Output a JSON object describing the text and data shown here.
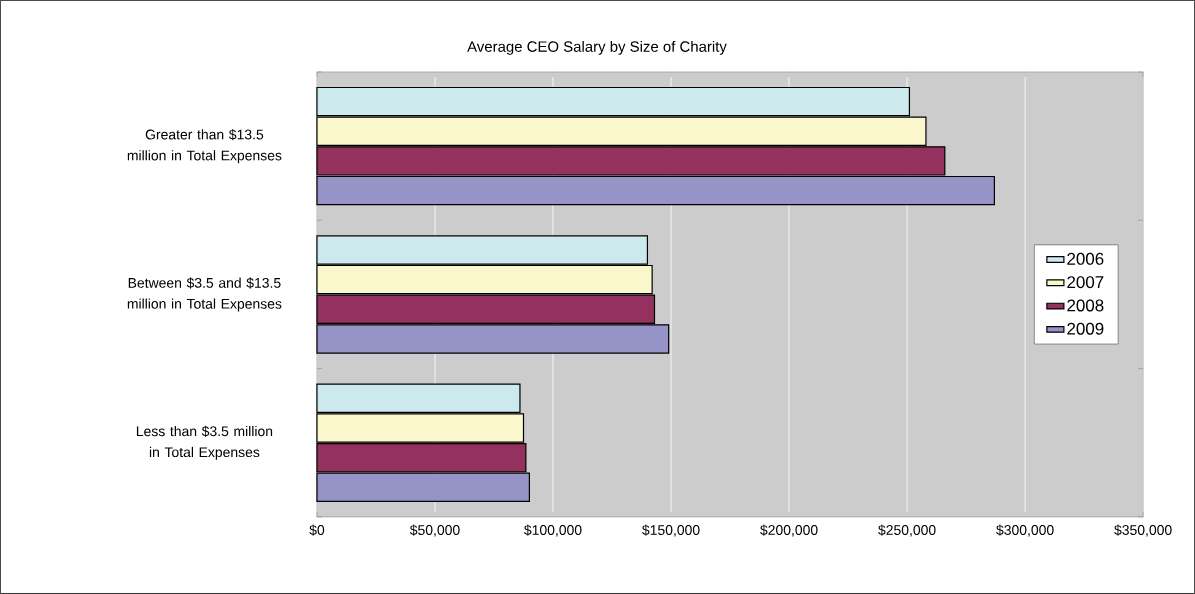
{
  "chart_data": {
    "type": "bar",
    "orientation": "horizontal",
    "title": "Average CEO Salary by Size of Charity",
    "categories": [
      "Greater than $13.5 million in Total Expenses",
      "Between $3.5 and $13.5 million in Total Expenses",
      "Less than $3.5 million in Total Expenses"
    ],
    "series": [
      {
        "name": "2006",
        "color": "#cce9ee",
        "values": [
          251000,
          140000,
          86000
        ]
      },
      {
        "name": "2007",
        "color": "#faf7cc",
        "values": [
          258000,
          142000,
          87500
        ]
      },
      {
        "name": "2008",
        "color": "#94315e",
        "values": [
          266000,
          143000,
          88500
        ]
      },
      {
        "name": "2009",
        "color": "#9693c6",
        "values": [
          287000,
          149000,
          90000
        ]
      }
    ],
    "xlim": [
      0,
      350000
    ],
    "xticks": [
      {
        "value": 0,
        "label": "$0"
      },
      {
        "value": 50000,
        "label": "$50,000"
      },
      {
        "value": 100000,
        "label": "$100,000"
      },
      {
        "value": 150000,
        "label": "$150,000"
      },
      {
        "value": 200000,
        "label": "$200,000"
      },
      {
        "value": 250000,
        "label": "$250,000"
      },
      {
        "value": 300000,
        "label": "$300,000"
      },
      {
        "value": 350000,
        "label": "$350,000"
      }
    ],
    "grid": "x",
    "legend": "right"
  }
}
